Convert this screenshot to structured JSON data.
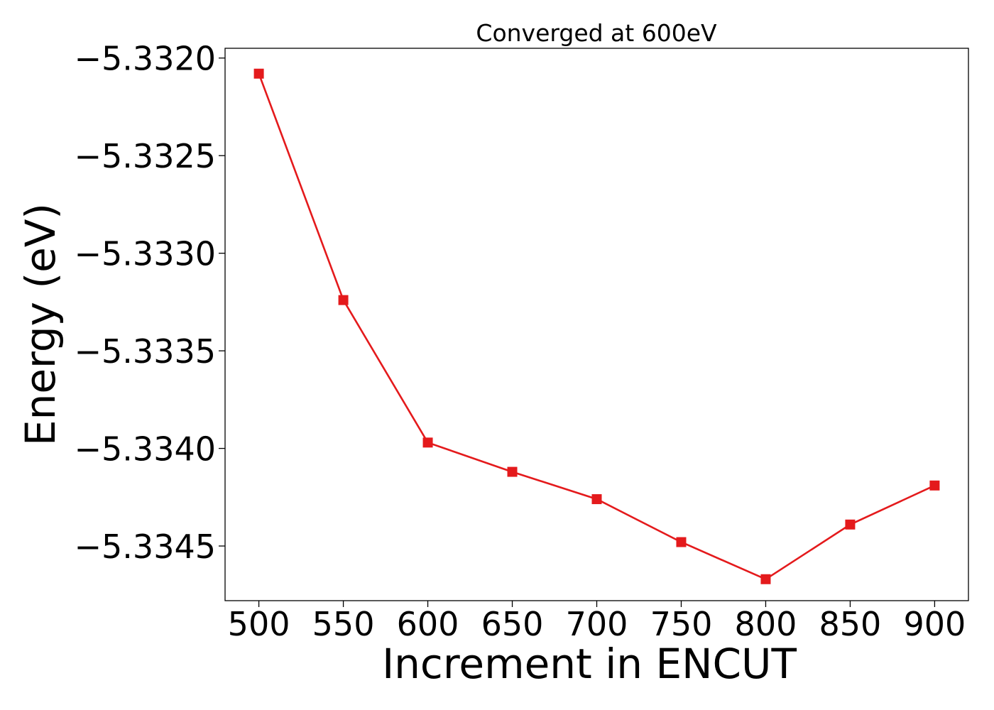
{
  "chart_data": {
    "type": "line",
    "title": "Converged at 600eV",
    "xlabel": "Increment in ENCUT",
    "ylabel": "Energy (eV)",
    "x": [
      500,
      550,
      600,
      650,
      700,
      750,
      800,
      850,
      900
    ],
    "series": [
      {
        "values": [
          -5.33208,
          -5.33324,
          -5.33397,
          -5.33412,
          -5.33426,
          -5.33448,
          -5.33467,
          -5.33439,
          -5.33419
        ],
        "color": "#e41a1c",
        "marker": "square"
      }
    ],
    "xticks": [
      500,
      550,
      600,
      650,
      700,
      750,
      800,
      850,
      900
    ],
    "xtick_labels": [
      "500",
      "550",
      "600",
      "650",
      "700",
      "750",
      "800",
      "850",
      "900"
    ],
    "yticks": [
      -5.332,
      -5.3325,
      -5.333,
      -5.3335,
      -5.334,
      -5.3345
    ],
    "ytick_labels": [
      "−5.3320",
      "−5.3325",
      "−5.3330",
      "−5.3335",
      "−5.3340",
      "−5.3345"
    ],
    "xlim": [
      480,
      920
    ],
    "ylim": [
      -5.33478,
      -5.33195
    ],
    "grid": false,
    "legend": false
  }
}
